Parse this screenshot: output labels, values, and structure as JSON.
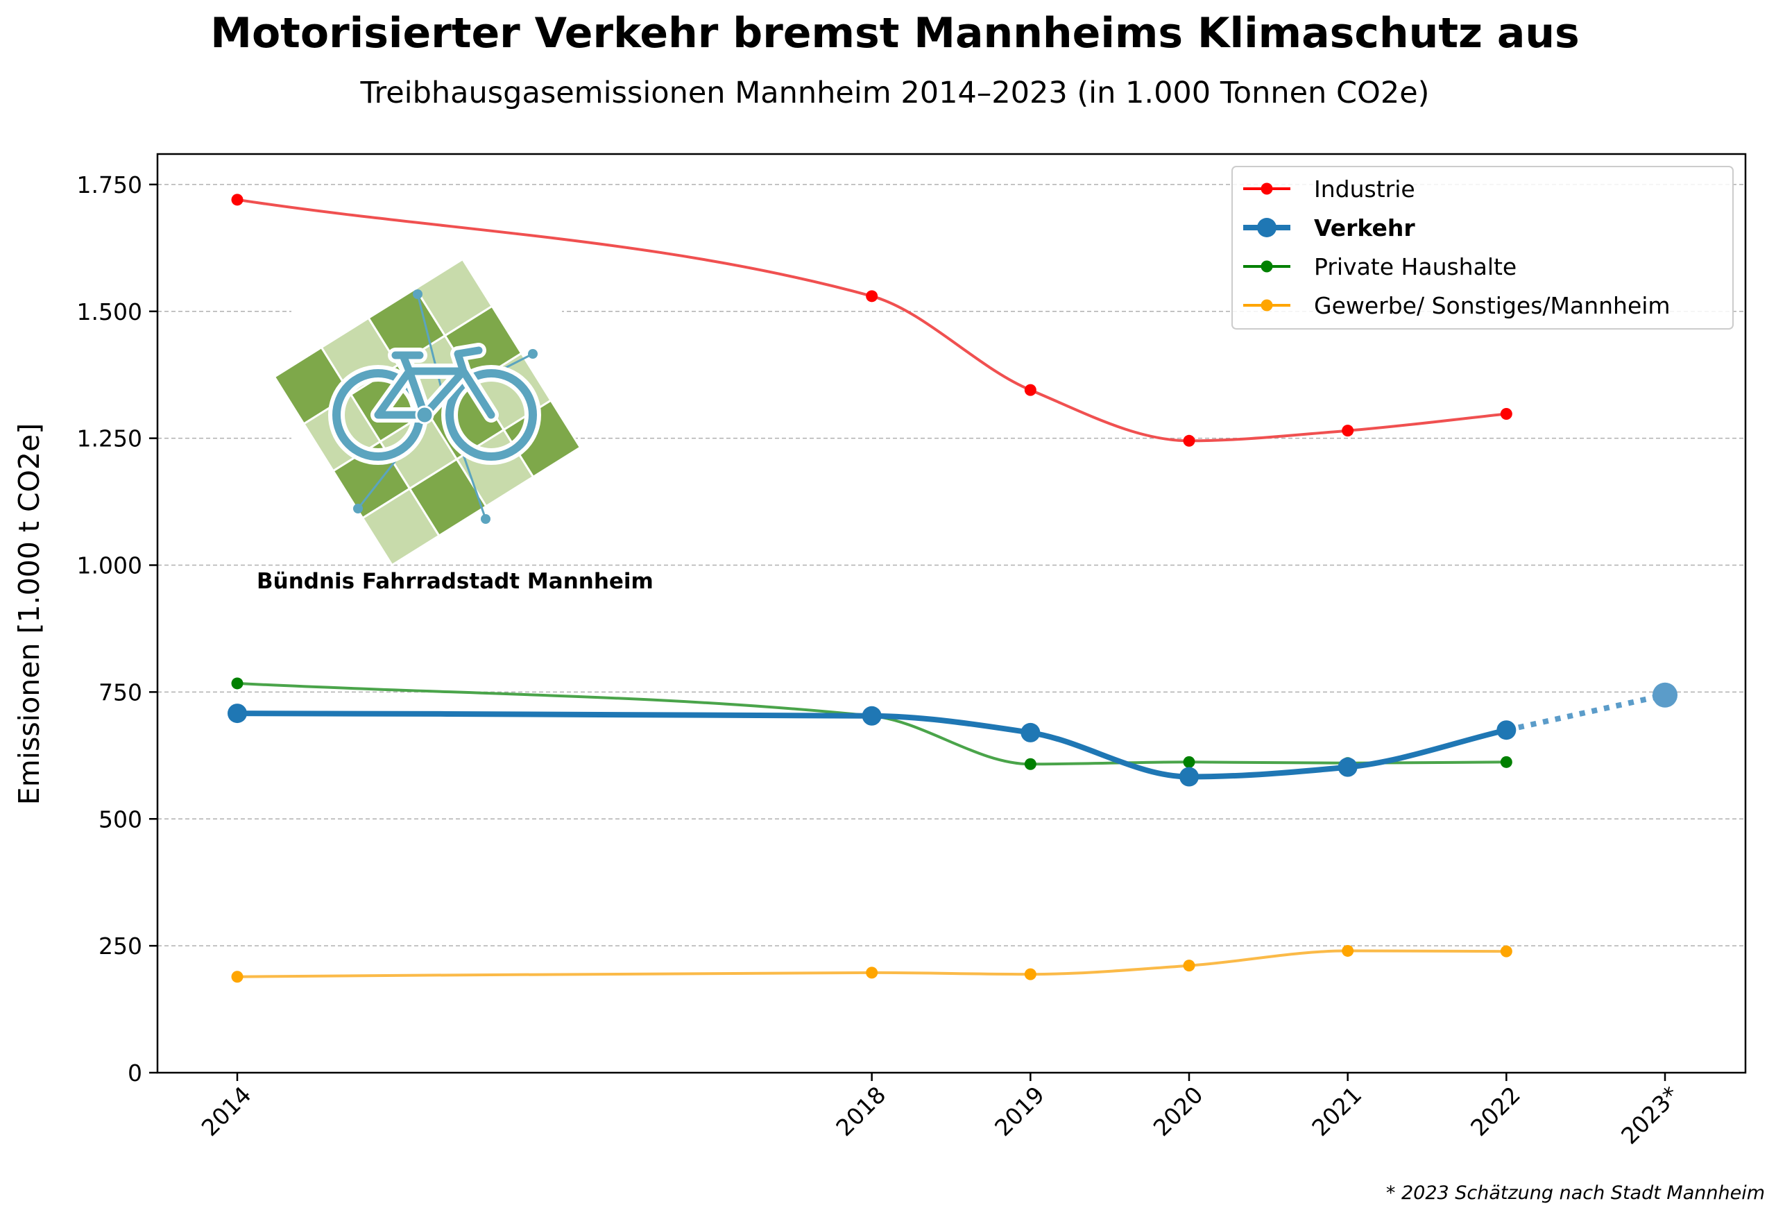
{
  "chart_data": {
    "type": "line",
    "title": "Motorisierter Verkehr bremst Mannheims Klimaschutz aus",
    "subtitle": "Treibhausgasemissionen Mannheim 2014–2023 (in 1.000 Tonnen CO2e)",
    "ylabel": "Emissionen [1.000 t CO2e]",
    "xlabel": "",
    "x": [
      2014,
      2018,
      2019,
      2020,
      2021,
      2022,
      2023
    ],
    "x_tick_labels": [
      "2014",
      "2018",
      "2019",
      "2020",
      "2021",
      "2022",
      "2023*"
    ],
    "ylim": [
      0,
      1810
    ],
    "y_ticks": [
      0,
      250,
      500,
      750,
      1000,
      1250,
      1500,
      1750
    ],
    "y_tick_labels": [
      "0",
      "250",
      "500",
      "750",
      "1.000",
      "1.250",
      "1.500",
      "1.750"
    ],
    "grid": "horizontal dashed",
    "legend_position": "top-right",
    "series": [
      {
        "name": "Industrie",
        "color": "#ff0000",
        "line_color": "#f05050",
        "emphasis": false,
        "x": [
          2014,
          2018,
          2019,
          2020,
          2021,
          2022
        ],
        "values": [
          1720,
          1530,
          1345,
          1245,
          1265,
          1298
        ]
      },
      {
        "name": "Verkehr",
        "color": "#1f77b4",
        "line_color": "#1f77b4",
        "emphasis": true,
        "x": [
          2014,
          2018,
          2019,
          2020,
          2021,
          2022
        ],
        "values": [
          708,
          703,
          670,
          583,
          602,
          675
        ]
      },
      {
        "name": "Private Haushalte",
        "color": "#008000",
        "line_color": "#4aa44a",
        "emphasis": false,
        "x": [
          2014,
          2018,
          2019,
          2020,
          2021,
          2022
        ],
        "values": [
          767,
          703,
          608,
          612,
          610,
          612
        ]
      },
      {
        "name": "Gewerbe/ Sonstiges/Mannheim",
        "color": "#ffa500",
        "line_color": "#fbba48",
        "emphasis": false,
        "x": [
          2014,
          2018,
          2019,
          2020,
          2021,
          2022
        ],
        "values": [
          189,
          197,
          194,
          211,
          240,
          239
        ]
      }
    ],
    "estimate": {
      "series": "Verkehr",
      "from_x": 2022,
      "from_value": 675,
      "x": 2023,
      "value": 744,
      "color": "#5b9cc9"
    },
    "footnote": "* 2023 Schätzung nach Stadt Mannheim"
  },
  "logo": {
    "caption": "Bündnis Fahrradstadt Mannheim",
    "icon": "bicycle-icon",
    "colors": {
      "dark": "#7ea84a",
      "light": "#c8dbab",
      "bike": "#5ba4bf"
    }
  }
}
